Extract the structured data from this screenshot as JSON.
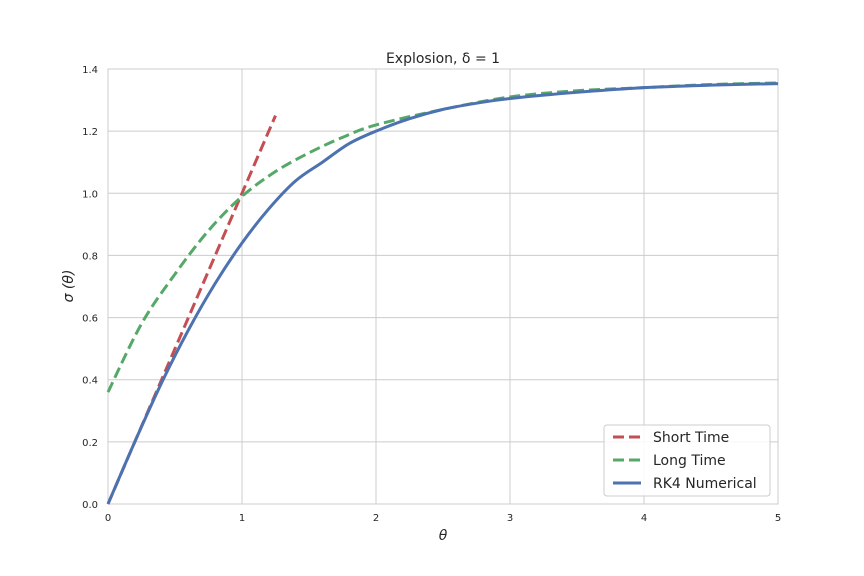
{
  "chart_data": {
    "type": "line",
    "title": "Explosion, δ = 1",
    "xlabel": "θ",
    "ylabel": "σ (θ)",
    "xlim": [
      0,
      5
    ],
    "ylim": [
      0,
      1.4
    ],
    "x_ticks": [
      "0",
      "1",
      "2",
      "3",
      "4",
      "5"
    ],
    "y_ticks": [
      "0.0",
      "0.2",
      "0.4",
      "0.6",
      "0.8",
      "1.0",
      "1.2",
      "1.4"
    ],
    "grid": true,
    "legend_position": "bottom-right",
    "series": [
      {
        "name": "Short Time",
        "color": "#c44e52",
        "style": "dashed",
        "x": [
          0,
          0.25,
          0.5,
          0.75,
          1.0,
          1.25
        ],
        "y": [
          0,
          0.25,
          0.5,
          0.75,
          1.0,
          1.25
        ]
      },
      {
        "name": "Long Time",
        "color": "#55a868",
        "style": "dashed",
        "x": [
          0,
          0.25,
          0.5,
          0.75,
          1.0,
          1.25,
          1.5,
          1.75,
          2.0,
          2.5,
          3.0,
          3.5,
          4.0,
          4.5,
          5.0
        ],
        "y": [
          0.36,
          0.58,
          0.74,
          0.88,
          0.99,
          1.07,
          1.13,
          1.18,
          1.22,
          1.27,
          1.31,
          1.33,
          1.34,
          1.35,
          1.355
        ]
      },
      {
        "name": "RK4 Numerical",
        "color": "#4c72b0",
        "style": "solid",
        "x": [
          0,
          0.2,
          0.4,
          0.6,
          0.8,
          1.0,
          1.2,
          1.4,
          1.6,
          1.8,
          2.0,
          2.25,
          2.5,
          2.75,
          3.0,
          3.5,
          4.0,
          4.5,
          5.0
        ],
        "y": [
          0,
          0.2,
          0.39,
          0.56,
          0.71,
          0.84,
          0.95,
          1.04,
          1.1,
          1.16,
          1.2,
          1.24,
          1.27,
          1.29,
          1.305,
          1.325,
          1.34,
          1.348,
          1.353
        ]
      }
    ]
  }
}
